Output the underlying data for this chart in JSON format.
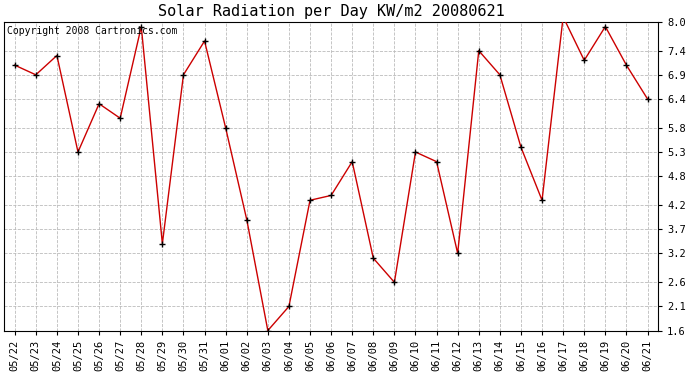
{
  "title": "Solar Radiation per Day KW/m2 20080621",
  "copyright": "Copyright 2008 Cartronics.com",
  "dates": [
    "05/22",
    "05/23",
    "05/24",
    "05/25",
    "05/26",
    "05/27",
    "05/28",
    "05/29",
    "05/30",
    "05/31",
    "06/01",
    "06/02",
    "06/03",
    "06/04",
    "06/05",
    "06/06",
    "06/07",
    "06/08",
    "06/09",
    "06/10",
    "06/11",
    "06/12",
    "06/13",
    "06/14",
    "06/15",
    "06/16",
    "06/17",
    "06/18",
    "06/19",
    "06/20",
    "06/21"
  ],
  "values": [
    7.1,
    6.9,
    7.3,
    5.3,
    6.3,
    6.0,
    7.9,
    3.4,
    6.9,
    7.6,
    5.8,
    3.9,
    1.6,
    2.1,
    4.3,
    4.4,
    5.1,
    3.1,
    2.6,
    5.3,
    5.1,
    3.2,
    7.4,
    6.9,
    5.4,
    4.3,
    8.1,
    7.2,
    7.9,
    7.1,
    6.4
  ],
  "line_color": "#cc0000",
  "marker": "+",
  "marker_color": "#000000",
  "bg_color": "#ffffff",
  "plot_bg_color": "#ffffff",
  "grid_color": "#bbbbbb",
  "ylim": [
    1.6,
    8.0
  ],
  "yticks": [
    1.6,
    2.1,
    2.6,
    3.2,
    3.7,
    4.2,
    4.8,
    5.3,
    5.8,
    6.4,
    6.9,
    7.4,
    8.0
  ],
  "title_fontsize": 11,
  "copyright_fontsize": 7,
  "tick_fontsize": 7.5
}
